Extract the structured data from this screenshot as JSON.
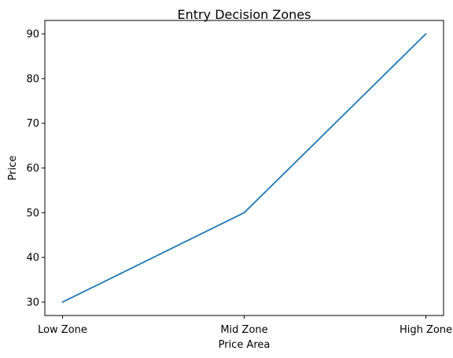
{
  "chart_data": {
    "type": "line",
    "title": "Entry Decision Zones",
    "xlabel": "Price Area",
    "ylabel": "Price",
    "categories": [
      "Low Zone",
      "Mid Zone",
      "High Zone"
    ],
    "series": [
      {
        "values": [
          30,
          50,
          90
        ],
        "color": "#1f77b4"
      }
    ],
    "ylim": [
      27,
      93
    ],
    "yticks": [
      30,
      40,
      50,
      60,
      70,
      80,
      90
    ],
    "grid": false,
    "legend": "none"
  }
}
